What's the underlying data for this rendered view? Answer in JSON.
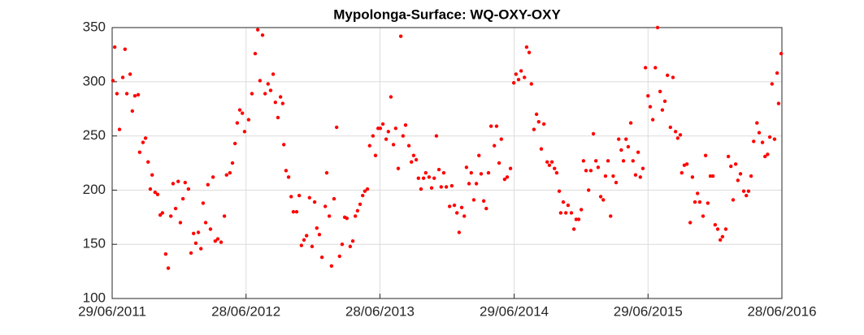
{
  "chart_data": {
    "type": "scatter",
    "title": "Mypolonga-Surface: WQ-OXY-OXY",
    "color": "#ff0000",
    "grid": true,
    "xlim": [
      "2011-06-29",
      "2016-06-28"
    ],
    "xticks": [
      {
        "value": "2011-06-29",
        "label": "29/06/2011"
      },
      {
        "value": "2012-06-28",
        "label": "28/06/2012"
      },
      {
        "value": "2013-06-28",
        "label": "28/06/2013"
      },
      {
        "value": "2014-06-29",
        "label": "29/06/2014"
      },
      {
        "value": "2015-06-29",
        "label": "29/06/2015"
      },
      {
        "value": "2016-06-28",
        "label": "28/06/2016"
      }
    ],
    "ylim": [
      100,
      350
    ],
    "yticks": [
      100,
      150,
      200,
      250,
      300,
      350
    ],
    "x": [
      "2011-07-01",
      "2011-07-06",
      "2011-07-12",
      "2011-07-19",
      "2011-07-28",
      "2011-08-03",
      "2011-08-08",
      "2011-08-17",
      "2011-08-23",
      "2011-08-30",
      "2011-09-08",
      "2011-09-12",
      "2011-09-21",
      "2011-09-28",
      "2011-10-05",
      "2011-10-11",
      "2011-10-16",
      "2011-10-24",
      "2011-10-31",
      "2011-11-07",
      "2011-11-13",
      "2011-11-22",
      "2011-11-29",
      "2011-12-06",
      "2011-12-12",
      "2011-12-19",
      "2011-12-26",
      "2012-01-01",
      "2012-01-08",
      "2012-01-14",
      "2012-01-23",
      "2012-01-30",
      "2012-02-06",
      "2012-02-12",
      "2012-02-19",
      "2012-02-26",
      "2012-03-03",
      "2012-03-10",
      "2012-03-16",
      "2012-03-23",
      "2012-03-30",
      "2012-04-05",
      "2012-04-12",
      "2012-04-21",
      "2012-04-30",
      "2012-05-06",
      "2012-05-15",
      "2012-05-22",
      "2012-05-29",
      "2012-06-04",
      "2012-06-11",
      "2012-06-18",
      "2012-06-24",
      "2012-07-05",
      "2012-07-14",
      "2012-07-23",
      "2012-07-30",
      "2012-08-05",
      "2012-08-12",
      "2012-08-19",
      "2012-08-27",
      "2012-09-03",
      "2012-09-10",
      "2012-09-16",
      "2012-09-23",
      "2012-09-30",
      "2012-10-06",
      "2012-10-09",
      "2012-10-15",
      "2012-10-22",
      "2012-10-29",
      "2012-11-04",
      "2012-11-13",
      "2012-11-20",
      "2012-11-26",
      "2012-12-03",
      "2012-12-10",
      "2012-12-18",
      "2012-12-25",
      "2013-01-01",
      "2013-01-07",
      "2013-01-14",
      "2013-01-21",
      "2013-01-30",
      "2013-02-03",
      "2013-02-10",
      "2013-02-16",
      "2013-02-23",
      "2013-03-02",
      "2013-03-10",
      "2013-03-17",
      "2013-03-24",
      "2013-03-30",
      "2013-04-08",
      "2013-04-15",
      "2013-04-22",
      "2013-04-28",
      "2013-05-05",
      "2013-05-12",
      "2013-05-18",
      "2013-05-25",
      "2013-05-31",
      "2013-06-09",
      "2013-06-16",
      "2013-06-23",
      "2013-06-29",
      "2013-07-06",
      "2013-07-15",
      "2013-07-21",
      "2013-07-28",
      "2013-08-04",
      "2013-08-10",
      "2013-08-17",
      "2013-08-24",
      "2013-08-30",
      "2013-09-06",
      "2013-09-15",
      "2013-09-22",
      "2013-09-28",
      "2013-10-05",
      "2013-10-11",
      "2013-10-18",
      "2013-10-25",
      "2013-10-31",
      "2013-11-09",
      "2013-11-16",
      "2013-11-23",
      "2013-11-29",
      "2013-12-06",
      "2013-12-12",
      "2013-12-19",
      "2013-12-26",
      "2014-01-04",
      "2014-01-10",
      "2014-01-17",
      "2014-01-24",
      "2014-01-30",
      "2014-02-06",
      "2014-02-13",
      "2014-02-19",
      "2014-02-26",
      "2014-03-04",
      "2014-03-11",
      "2014-03-18",
      "2014-03-25",
      "2014-03-31",
      "2014-04-07",
      "2014-04-14",
      "2014-04-20",
      "2014-04-27",
      "2014-05-06",
      "2014-05-12",
      "2014-05-19",
      "2014-05-25",
      "2014-06-03",
      "2014-06-10",
      "2014-06-19",
      "2014-06-28",
      "2014-07-04",
      "2014-07-11",
      "2014-07-18",
      "2014-07-27",
      "2014-08-02",
      "2014-08-09",
      "2014-08-15",
      "2014-08-22",
      "2014-08-29",
      "2014-09-04",
      "2014-09-11",
      "2014-09-18",
      "2014-09-27",
      "2014-10-03",
      "2014-10-10",
      "2014-10-17",
      "2014-10-23",
      "2014-10-30",
      "2014-11-03",
      "2014-11-10",
      "2014-11-17",
      "2014-11-23",
      "2014-12-02",
      "2014-12-09",
      "2014-12-15",
      "2014-12-22",
      "2014-12-29",
      "2015-01-04",
      "2015-01-11",
      "2015-01-18",
      "2015-01-24",
      "2015-01-31",
      "2015-02-07",
      "2015-02-13",
      "2015-02-20",
      "2015-02-27",
      "2015-03-05",
      "2015-03-12",
      "2015-03-19",
      "2015-03-26",
      "2015-04-03",
      "2015-04-10",
      "2015-04-17",
      "2015-04-23",
      "2015-04-30",
      "2015-05-06",
      "2015-05-13",
      "2015-05-19",
      "2015-05-26",
      "2015-06-02",
      "2015-06-08",
      "2015-06-15",
      "2015-06-22",
      "2015-06-29",
      "2015-07-05",
      "2015-07-12",
      "2015-07-19",
      "2015-07-25",
      "2015-08-01",
      "2015-08-07",
      "2015-08-14",
      "2015-08-21",
      "2015-08-29",
      "2015-09-05",
      "2015-09-12",
      "2015-09-18",
      "2015-09-25",
      "2015-09-29",
      "2015-10-06",
      "2015-10-13",
      "2015-10-22",
      "2015-10-28",
      "2015-11-04",
      "2015-11-11",
      "2015-11-17",
      "2015-11-26",
      "2015-12-03",
      "2015-12-09",
      "2015-12-16",
      "2015-12-23",
      "2015-12-29",
      "2016-01-05",
      "2016-01-12",
      "2016-01-18",
      "2016-01-27",
      "2016-02-03",
      "2016-02-10",
      "2016-02-16",
      "2016-02-23",
      "2016-02-29",
      "2016-03-07",
      "2016-03-16",
      "2016-03-23",
      "2016-03-29",
      "2016-04-05",
      "2016-04-12",
      "2016-04-21",
      "2016-04-27",
      "2016-05-06",
      "2016-05-13",
      "2016-05-20",
      "2016-05-26",
      "2016-06-01",
      "2016-06-08",
      "2016-06-15",
      "2016-06-19",
      "2016-06-26"
    ],
    "values": [
      301,
      332,
      289,
      256,
      304,
      330,
      289,
      307,
      273,
      287,
      288,
      235,
      244,
      248,
      226,
      201,
      214,
      198,
      196,
      177,
      179,
      141,
      128,
      176,
      206,
      183,
      208,
      170,
      192,
      207,
      201,
      142,
      160,
      151,
      161,
      146,
      188,
      170,
      205,
      164,
      212,
      153,
      155,
      152,
      176,
      214,
      216,
      225,
      243,
      262,
      274,
      271,
      254,
      265,
      289,
      326,
      348,
      301,
      343,
      289,
      298,
      292,
      307,
      281,
      267,
      286,
      280,
      242,
      218,
      212,
      194,
      180,
      180,
      195,
      149,
      154,
      158,
      193,
      148,
      189,
      165,
      159,
      138,
      185,
      216,
      176,
      130,
      192,
      258,
      139,
      150,
      175,
      174,
      148,
      153,
      176,
      181,
      187,
      195,
      199,
      201,
      241,
      250,
      232,
      257,
      257,
      261,
      247,
      254,
      286,
      242,
      257,
      220,
      342,
      250,
      260,
      241,
      226,
      232,
      228,
      211,
      201,
      211,
      216,
      212,
      202,
      211,
      250,
      219,
      203,
      216,
      203,
      185,
      204,
      186,
      179,
      161,
      184,
      176,
      221,
      206,
      216,
      191,
      206,
      232,
      215,
      190,
      183,
      216,
      259,
      241,
      259,
      225,
      247,
      210,
      212,
      220,
      299,
      307,
      302,
      310,
      304,
      332,
      327,
      298,
      256,
      270,
      263,
      238,
      261,
      226,
      223,
      226,
      220,
      216,
      199,
      179,
      189,
      179,
      186,
      179,
      164,
      173,
      173,
      182,
      227,
      218,
      200,
      218,
      252,
      227,
      221,
      194,
      191,
      213,
      227,
      176,
      213,
      207,
      247,
      237,
      227,
      247,
      240,
      262,
      227,
      214,
      235,
      212,
      220,
      313,
      287,
      277,
      265,
      313,
      350,
      291,
      274,
      282,
      306,
      258,
      304,
      254,
      248,
      251,
      216,
      223,
      224,
      170,
      212,
      189,
      197,
      189,
      176,
      232,
      188,
      213,
      213,
      168,
      164,
      154,
      157,
      164,
      231,
      222,
      191,
      224,
      209,
      215,
      199,
      195,
      199,
      213,
      245,
      262,
      253,
      244,
      231,
      233,
      249,
      298,
      247,
      308,
      280,
      326
    ]
  }
}
